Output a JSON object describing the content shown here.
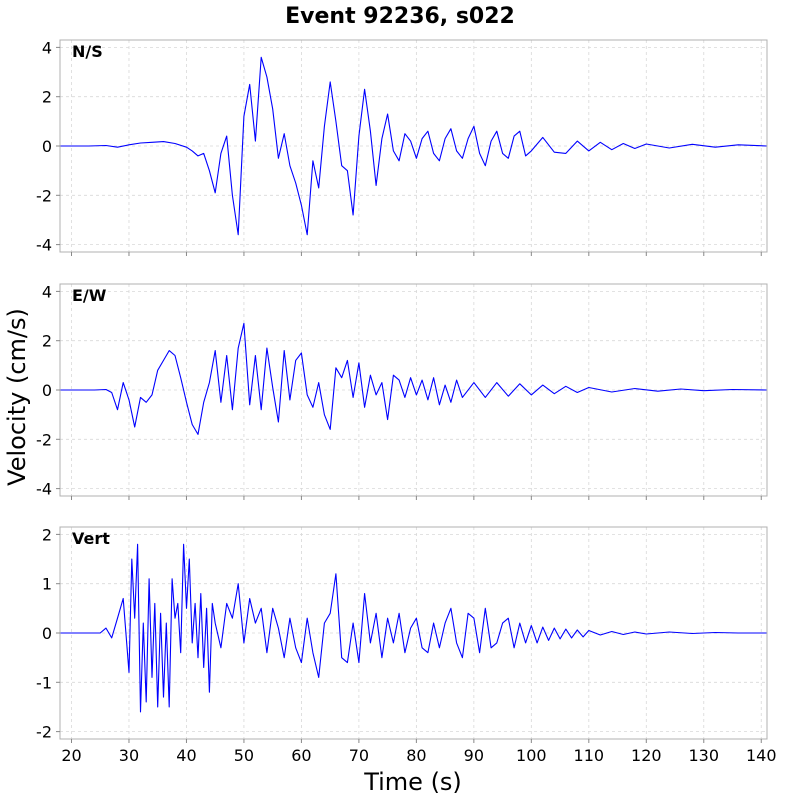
{
  "title": "Event 92236, s022",
  "chart_data": {
    "type": "line",
    "title": "Event 92236, s022",
    "xlabel": "Time (s)",
    "ylabel": "Velocity (cm/s)",
    "xlim": [
      18,
      141
    ],
    "x_ticks": [
      20,
      30,
      40,
      50,
      60,
      70,
      80,
      90,
      100,
      110,
      120,
      130,
      140
    ],
    "grid": true,
    "line_color": "#0000ff",
    "panels": [
      {
        "label": "N/S",
        "ylim": [
          -4.3,
          4.3
        ],
        "y_ticks": [
          -4,
          -2,
          0,
          2,
          4
        ],
        "series": {
          "x": [
            18,
            23,
            26,
            28,
            30,
            32,
            34,
            36,
            38,
            40,
            41,
            42,
            43,
            44,
            45,
            46,
            47,
            48,
            49,
            50,
            51,
            52,
            53,
            54,
            55,
            56,
            57,
            58,
            59,
            60,
            61,
            62,
            63,
            64,
            65,
            66,
            67,
            68,
            69,
            70,
            71,
            72,
            73,
            74,
            75,
            76,
            77,
            78,
            79,
            80,
            81,
            82,
            83,
            84,
            85,
            86,
            87,
            88,
            89,
            90,
            91,
            92,
            93,
            94,
            95,
            96,
            97,
            98,
            99,
            100,
            102,
            104,
            106,
            108,
            110,
            112,
            114,
            116,
            118,
            120,
            124,
            128,
            132,
            136,
            141
          ],
          "y": [
            0,
            0,
            0.02,
            -0.05,
            0.05,
            0.12,
            0.15,
            0.18,
            0.1,
            -0.05,
            -0.2,
            -0.4,
            -0.3,
            -1.0,
            -1.9,
            -0.3,
            0.4,
            -2.0,
            -3.6,
            1.2,
            2.5,
            0.2,
            3.6,
            2.8,
            1.5,
            -0.5,
            0.5,
            -0.8,
            -1.5,
            -2.4,
            -3.6,
            -0.6,
            -1.7,
            0.8,
            2.6,
            1.0,
            -0.8,
            -1.0,
            -2.8,
            0.4,
            2.3,
            0.6,
            -1.6,
            0.3,
            1.3,
            -0.2,
            -0.6,
            0.5,
            0.2,
            -0.5,
            0.3,
            0.6,
            -0.3,
            -0.6,
            0.3,
            0.7,
            -0.2,
            -0.5,
            0.3,
            0.8,
            -0.3,
            -0.8,
            0.2,
            0.6,
            -0.3,
            -0.5,
            0.4,
            0.6,
            -0.4,
            -0.2,
            0.35,
            -0.25,
            -0.3,
            0.2,
            -0.2,
            0.15,
            -0.15,
            0.1,
            -0.1,
            0.08,
            -0.08,
            0.07,
            -0.05,
            0.05,
            0
          ]
        }
      },
      {
        "label": "E/W",
        "ylim": [
          -4.3,
          4.3
        ],
        "y_ticks": [
          -4,
          -2,
          0,
          2,
          4
        ],
        "series": {
          "x": [
            18,
            24,
            26,
            27,
            28,
            29,
            30,
            31,
            32,
            33,
            34,
            35,
            36,
            37,
            38,
            39,
            40,
            41,
            42,
            43,
            44,
            45,
            46,
            47,
            48,
            49,
            50,
            51,
            52,
            53,
            54,
            55,
            56,
            57,
            58,
            59,
            60,
            61,
            62,
            63,
            64,
            65,
            66,
            67,
            68,
            69,
            70,
            71,
            72,
            73,
            74,
            75,
            76,
            77,
            78,
            79,
            80,
            81,
            82,
            83,
            84,
            85,
            86,
            87,
            88,
            90,
            92,
            94,
            96,
            98,
            100,
            102,
            104,
            106,
            108,
            110,
            114,
            118,
            122,
            126,
            130,
            135,
            141
          ],
          "y": [
            0,
            0,
            0.02,
            -0.1,
            -0.8,
            0.3,
            -0.4,
            -1.5,
            -0.3,
            -0.5,
            -0.2,
            0.8,
            1.2,
            1.6,
            1.4,
            0.5,
            -0.5,
            -1.4,
            -1.8,
            -0.5,
            0.3,
            1.6,
            -0.5,
            1.4,
            -0.8,
            1.7,
            2.7,
            -0.6,
            1.4,
            -0.8,
            1.7,
            0.1,
            -1.3,
            1.6,
            -0.4,
            1.2,
            1.5,
            -0.2,
            -0.7,
            0.3,
            -1.0,
            -1.6,
            0.9,
            0.5,
            1.2,
            -0.3,
            1.1,
            -0.7,
            0.6,
            -0.2,
            0.3,
            -1.2,
            0.6,
            0.4,
            -0.3,
            0.5,
            -0.2,
            0.4,
            -0.4,
            0.5,
            -0.6,
            0.2,
            -0.5,
            0.4,
            -0.3,
            0.3,
            -0.3,
            0.3,
            -0.25,
            0.25,
            -0.2,
            0.2,
            -0.15,
            0.15,
            -0.1,
            0.1,
            -0.08,
            0.06,
            -0.05,
            0.04,
            -0.03,
            0.02,
            0
          ]
        }
      },
      {
        "label": "Vert",
        "ylim": [
          -2.15,
          2.15
        ],
        "y_ticks": [
          -2,
          -1,
          0,
          1,
          2
        ],
        "series": {
          "x": [
            18,
            25,
            26,
            27,
            28,
            29,
            30,
            30.5,
            31,
            31.5,
            32,
            32.5,
            33,
            33.5,
            34,
            34.5,
            35,
            35.5,
            36,
            36.5,
            37,
            37.5,
            38,
            38.5,
            39,
            39.5,
            40,
            40.5,
            41,
            41.5,
            42,
            42.5,
            43,
            43.5,
            44,
            44.5,
            45,
            46,
            47,
            48,
            49,
            50,
            51,
            52,
            53,
            54,
            55,
            56,
            57,
            58,
            59,
            60,
            61,
            62,
            63,
            64,
            65,
            66,
            67,
            68,
            69,
            70,
            71,
            72,
            73,
            74,
            75,
            76,
            77,
            78,
            79,
            80,
            81,
            82,
            83,
            84,
            85,
            86,
            87,
            88,
            89,
            90,
            91,
            92,
            93,
            94,
            95,
            96,
            97,
            98,
            99,
            100,
            101,
            102,
            103,
            104,
            105,
            106,
            107,
            108,
            109,
            110,
            112,
            114,
            116,
            118,
            120,
            124,
            128,
            132,
            136,
            141
          ],
          "y": [
            0,
            0,
            0.1,
            -0.1,
            0.3,
            0.7,
            -0.8,
            1.5,
            0.3,
            1.8,
            -1.6,
            0.2,
            -1.4,
            1.1,
            -0.9,
            0.6,
            -1.5,
            0.4,
            -1.3,
            0.2,
            -1.5,
            1.1,
            0.3,
            0.6,
            -0.4,
            1.8,
            0.5,
            1.5,
            -0.2,
            0.6,
            -0.5,
            0.8,
            -0.7,
            0.5,
            -1.2,
            0.6,
            0.2,
            -0.3,
            0.6,
            0.3,
            1.0,
            -0.2,
            0.7,
            0.2,
            0.5,
            -0.4,
            0.5,
            0.1,
            -0.5,
            0.3,
            -0.3,
            -0.6,
            0.3,
            -0.4,
            -0.9,
            0.2,
            0.4,
            1.2,
            -0.5,
            -0.6,
            0.2,
            -0.6,
            0.8,
            -0.2,
            0.4,
            -0.5,
            0.3,
            -0.2,
            0.4,
            -0.4,
            0.1,
            0.3,
            -0.3,
            -0.4,
            0.2,
            -0.3,
            0.2,
            0.5,
            -0.2,
            -0.5,
            0.4,
            0.3,
            -0.4,
            0.5,
            -0.3,
            -0.2,
            0.2,
            0.3,
            -0.3,
            0.2,
            -0.2,
            0.15,
            -0.2,
            0.12,
            -0.15,
            0.1,
            -0.12,
            0.08,
            -0.1,
            0.06,
            -0.08,
            0.05,
            -0.04,
            0.03,
            -0.03,
            0.02,
            -0.02,
            0.02,
            -0.01,
            0.01,
            0,
            0
          ]
        }
      }
    ]
  }
}
